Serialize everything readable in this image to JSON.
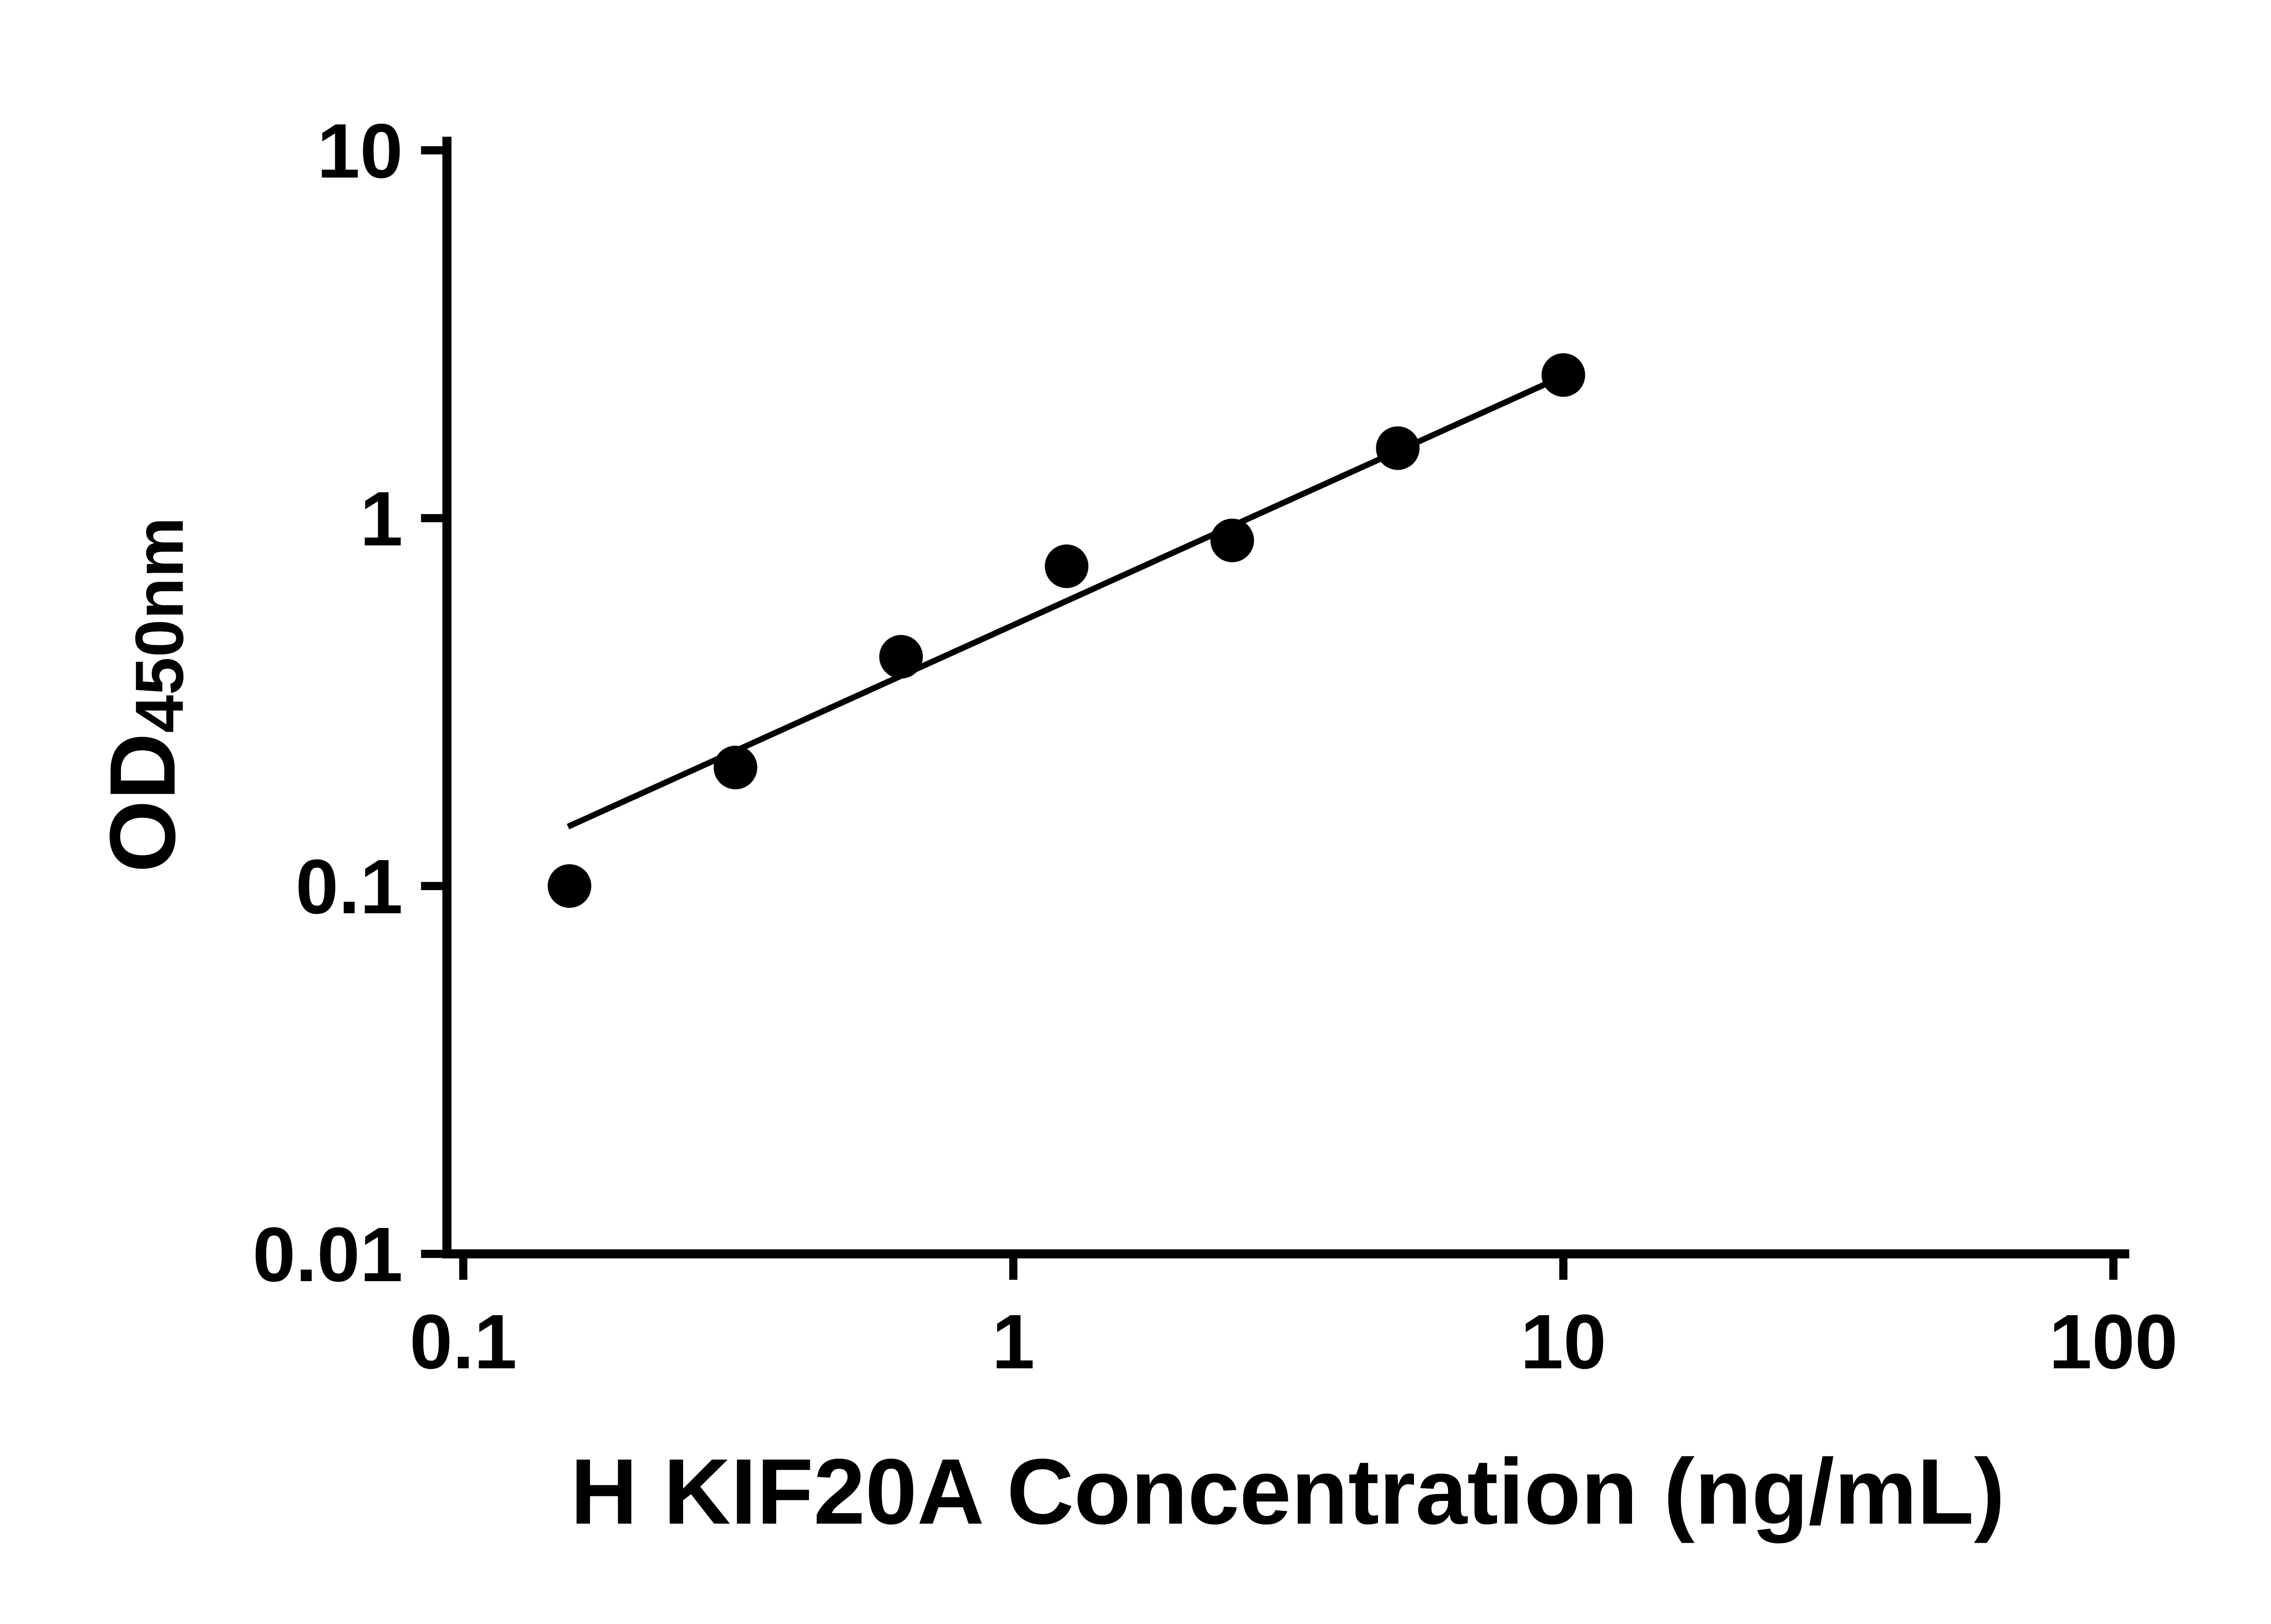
{
  "figure": {
    "background": "#ffffff"
  },
  "chart_data": {
    "type": "scatter",
    "title": "",
    "xlabel": "H KIF20A Concentration (ng/mL)",
    "ylabel": "OD450nm",
    "ylabel_main": "OD",
    "ylabel_sub": "450nm",
    "x_scale": "log",
    "y_scale": "log",
    "xlim": [
      0.1,
      100
    ],
    "ylim": [
      0.01,
      10
    ],
    "x_ticks": [
      "0.1",
      "1",
      "10",
      "100"
    ],
    "y_ticks": [
      "0.01",
      "0.1",
      "1",
      "10"
    ],
    "grid": false,
    "legend": false,
    "marker_color": "#000000",
    "line_color": "#000000",
    "axis_color": "#000000",
    "points": [
      {
        "x": 0.156,
        "y": 0.1
      },
      {
        "x": 0.3125,
        "y": 0.21
      },
      {
        "x": 0.625,
        "y": 0.42
      },
      {
        "x": 1.25,
        "y": 0.74
      },
      {
        "x": 2.5,
        "y": 0.87
      },
      {
        "x": 5,
        "y": 1.55
      },
      {
        "x": 10,
        "y": 2.45
      }
    ],
    "trend_line": {
      "x1": 0.155,
      "y1": 0.145,
      "x2": 10.4,
      "y2": 2.5
    }
  }
}
